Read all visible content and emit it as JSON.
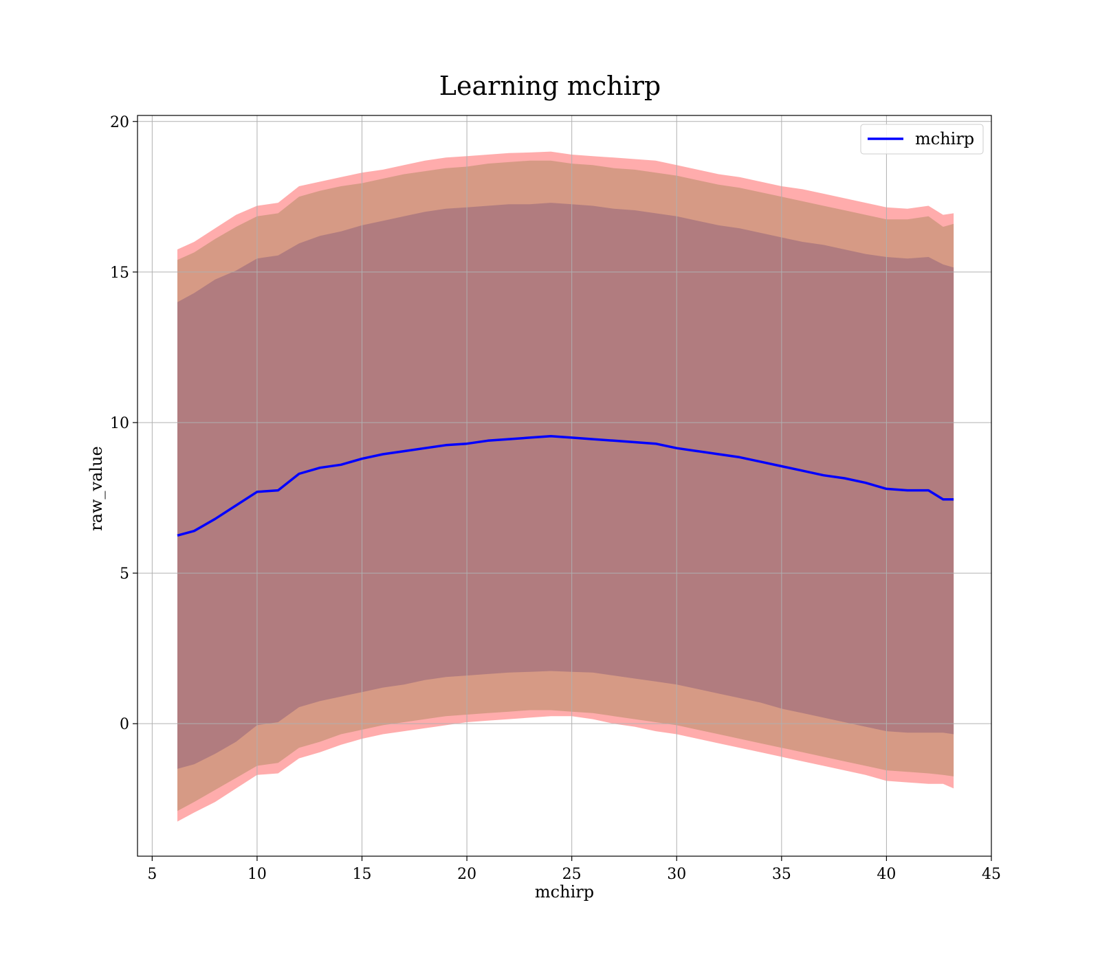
{
  "chart_data": {
    "type": "line",
    "title": "Learning mchirp",
    "xlabel": "mchirp",
    "ylabel": "raw_value",
    "xlim": [
      4.3,
      45
    ],
    "ylim": [
      -4.4,
      20.2
    ],
    "xticks": [
      5,
      10,
      15,
      20,
      25,
      30,
      35,
      40,
      45
    ],
    "yticks": [
      0,
      5,
      10,
      15,
      20
    ],
    "grid": true,
    "legend": {
      "position": "top-right",
      "entries": [
        "mchirp"
      ]
    },
    "x": [
      6.2,
      7,
      8,
      9,
      10,
      11,
      12,
      13,
      14,
      15,
      16,
      17,
      18,
      19,
      20,
      21,
      22,
      23,
      24,
      25,
      26,
      27,
      28,
      29,
      30,
      31,
      32,
      33,
      34,
      35,
      36,
      37,
      38,
      39,
      40,
      41,
      42,
      42.7,
      43.2
    ],
    "series": [
      {
        "name": "mchirp",
        "color": "#0000ff",
        "values": [
          6.25,
          6.4,
          6.8,
          7.25,
          7.7,
          7.75,
          8.3,
          8.5,
          8.6,
          8.8,
          8.95,
          9.05,
          9.15,
          9.25,
          9.3,
          9.4,
          9.45,
          9.5,
          9.55,
          9.5,
          9.45,
          9.4,
          9.35,
          9.3,
          9.15,
          9.05,
          8.95,
          8.85,
          8.7,
          8.55,
          8.4,
          8.25,
          8.15,
          8.0,
          7.8,
          7.75,
          7.75,
          7.45,
          7.45
        ]
      }
    ],
    "bands": [
      {
        "name": "outer",
        "color": "#ff8080",
        "upper": [
          15.75,
          16.0,
          16.45,
          16.9,
          17.2,
          17.3,
          17.85,
          18.0,
          18.15,
          18.3,
          18.4,
          18.55,
          18.7,
          18.8,
          18.85,
          18.9,
          18.95,
          18.97,
          19.0,
          18.9,
          18.85,
          18.8,
          18.75,
          18.7,
          18.55,
          18.4,
          18.25,
          18.15,
          18.0,
          17.85,
          17.75,
          17.6,
          17.45,
          17.3,
          17.15,
          17.1,
          17.2,
          16.9,
          16.95
        ],
        "lower": [
          -3.25,
          -2.95,
          -2.6,
          -2.15,
          -1.7,
          -1.65,
          -1.15,
          -0.95,
          -0.7,
          -0.5,
          -0.35,
          -0.25,
          -0.15,
          -0.05,
          0.05,
          0.1,
          0.15,
          0.2,
          0.25,
          0.25,
          0.15,
          0.0,
          -0.1,
          -0.25,
          -0.35,
          -0.5,
          -0.65,
          -0.8,
          -0.95,
          -1.1,
          -1.25,
          -1.4,
          -1.55,
          -1.7,
          -1.9,
          -1.95,
          -2.0,
          -2.0,
          -2.15
        ]
      },
      {
        "name": "middle",
        "color": "#c09070",
        "upper": [
          15.4,
          15.65,
          16.1,
          16.5,
          16.85,
          16.95,
          17.5,
          17.7,
          17.85,
          17.95,
          18.1,
          18.25,
          18.35,
          18.45,
          18.5,
          18.6,
          18.65,
          18.7,
          18.7,
          18.6,
          18.55,
          18.45,
          18.4,
          18.3,
          18.2,
          18.05,
          17.9,
          17.8,
          17.65,
          17.5,
          17.35,
          17.2,
          17.05,
          16.9,
          16.75,
          16.75,
          16.85,
          16.5,
          16.6
        ],
        "lower": [
          -2.9,
          -2.6,
          -2.2,
          -1.8,
          -1.4,
          -1.3,
          -0.8,
          -0.6,
          -0.35,
          -0.2,
          -0.05,
          0.05,
          0.15,
          0.25,
          0.3,
          0.35,
          0.4,
          0.45,
          0.45,
          0.4,
          0.35,
          0.25,
          0.15,
          0.05,
          -0.05,
          -0.2,
          -0.35,
          -0.5,
          -0.65,
          -0.8,
          -0.95,
          -1.1,
          -1.25,
          -1.4,
          -1.55,
          -1.6,
          -1.65,
          -1.7,
          -1.75
        ]
      },
      {
        "name": "inner",
        "color": "#9c6b7d",
        "upper": [
          14.0,
          14.3,
          14.75,
          15.05,
          15.45,
          15.55,
          15.95,
          16.2,
          16.35,
          16.55,
          16.7,
          16.85,
          17.0,
          17.1,
          17.15,
          17.2,
          17.25,
          17.25,
          17.3,
          17.25,
          17.2,
          17.1,
          17.05,
          16.95,
          16.85,
          16.7,
          16.55,
          16.45,
          16.3,
          16.15,
          16.0,
          15.9,
          15.75,
          15.6,
          15.5,
          15.45,
          15.5,
          15.25,
          15.15
        ],
        "lower": [
          -1.5,
          -1.35,
          -1.0,
          -0.6,
          -0.05,
          0.05,
          0.55,
          0.75,
          0.9,
          1.05,
          1.2,
          1.3,
          1.45,
          1.55,
          1.6,
          1.65,
          1.7,
          1.72,
          1.75,
          1.72,
          1.7,
          1.6,
          1.5,
          1.4,
          1.3,
          1.15,
          1.0,
          0.85,
          0.7,
          0.5,
          0.35,
          0.2,
          0.05,
          -0.1,
          -0.25,
          -0.3,
          -0.3,
          -0.3,
          -0.35
        ]
      }
    ]
  }
}
